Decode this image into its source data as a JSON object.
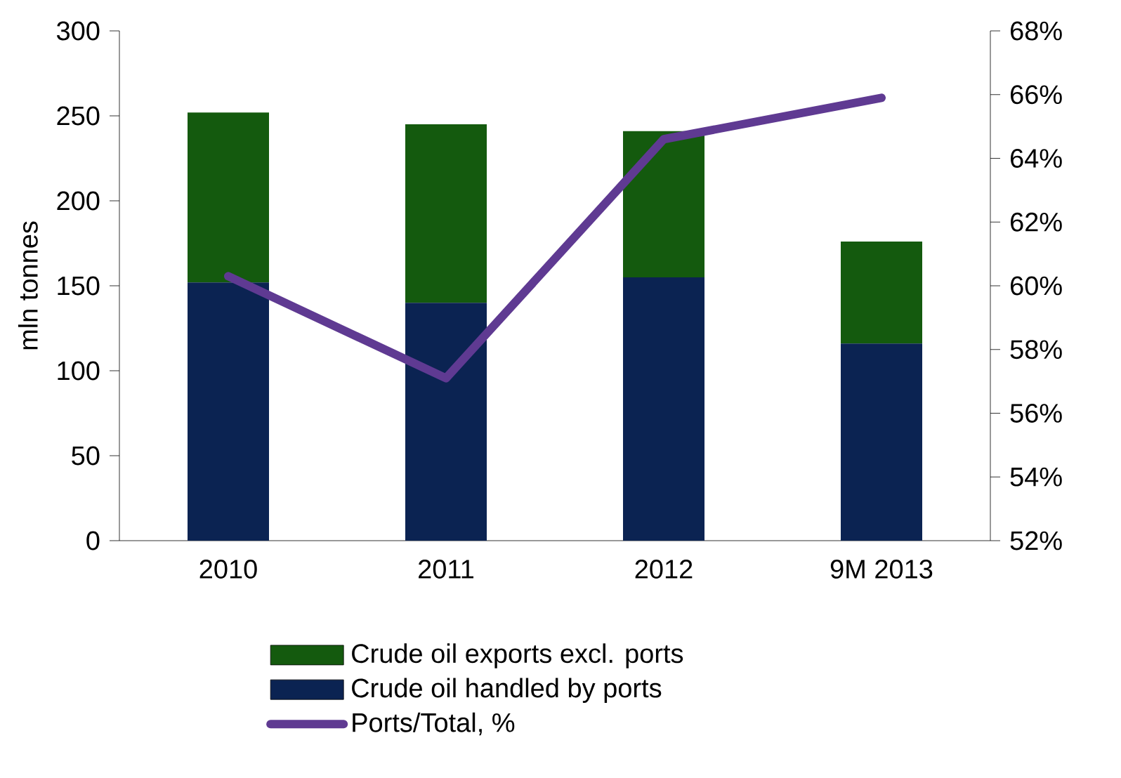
{
  "chart_data": {
    "type": "bar",
    "stacked": true,
    "categories": [
      "2010",
      "2011",
      "2012",
      "9M 2013"
    ],
    "series": [
      {
        "name": "Crude oil handled by ports",
        "color": "#0b2352",
        "values": [
          152,
          140,
          155,
          116
        ]
      },
      {
        "name": "Crude oil exports excl. ports",
        "color": "#145a0e",
        "values": [
          100,
          105,
          86,
          60
        ]
      },
      {
        "name": "Ports/Total, %",
        "color": "#5f3a92",
        "type": "line",
        "axis": "y2",
        "values": [
          60.3,
          57.1,
          64.6,
          65.9
        ]
      }
    ],
    "ylabel": "mln tonnes",
    "ylim": [
      0,
      300
    ],
    "yticks": [
      0,
      50,
      100,
      150,
      200,
      250,
      300
    ],
    "y2lim": [
      52,
      68
    ],
    "y2ticks": [
      {
        "value": 52,
        "label": "52%"
      },
      {
        "value": 54,
        "label": "54%"
      },
      {
        "value": 56,
        "label": "56%"
      },
      {
        "value": 58,
        "label": "58%"
      },
      {
        "value": 60,
        "label": "60%"
      },
      {
        "value": 62,
        "label": "62%"
      },
      {
        "value": 64,
        "label": "64%"
      },
      {
        "value": 66,
        "label": "66%"
      },
      {
        "value": 68,
        "label": "68%"
      }
    ],
    "legend": "bottom"
  }
}
